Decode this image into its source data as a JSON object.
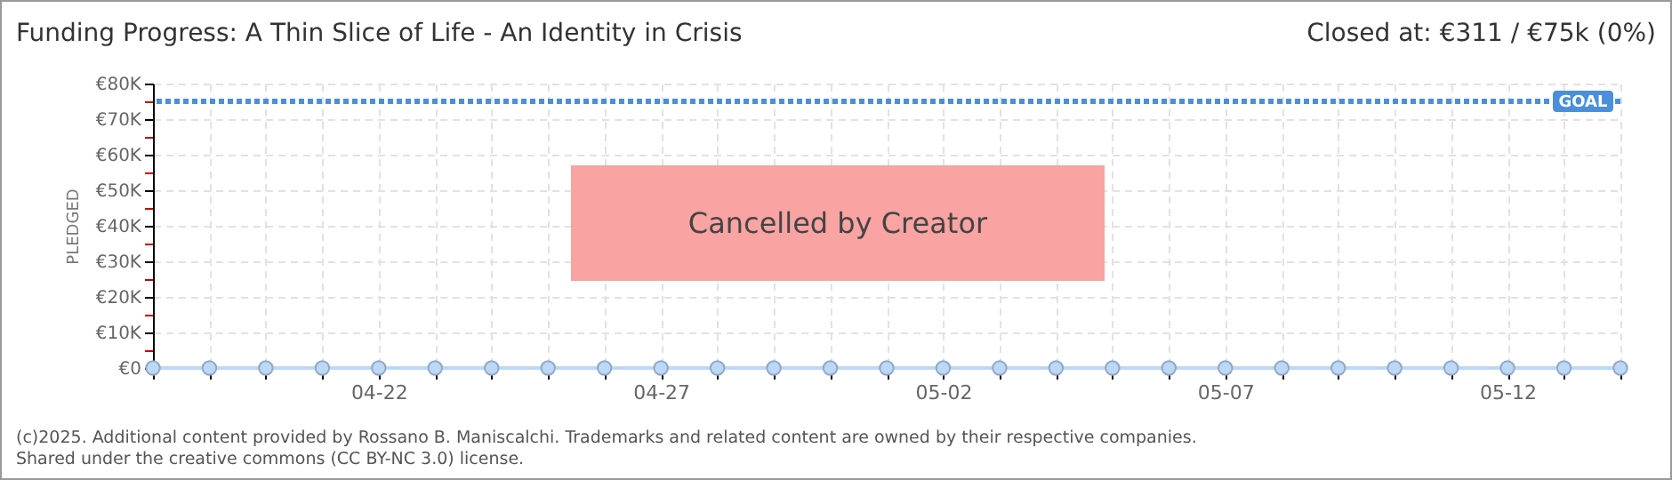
{
  "chart_data": {
    "type": "line",
    "title": "Funding Progress: A Thin Slice of Life - An Identity in Crisis",
    "subtitle": "Closed at:  €311 / €75k (0%)",
    "ylabel": "PLEDGED",
    "x": [
      "--04-18",
      "--04-19",
      "--04-20",
      "--04-21",
      "--04-22",
      "--04-23",
      "--04-24",
      "--04-25",
      "--04-26",
      "--04-27",
      "--04-28",
      "--04-29",
      "--04-30",
      "--05-01",
      "--05-02",
      "--05-03",
      "--05-04",
      "--05-05",
      "--05-06",
      "--05-07",
      "--05-08",
      "--05-09",
      "--05-10",
      "--05-11",
      "--05-12",
      "--05-13",
      "--05-14"
    ],
    "series": [
      {
        "color": "#bcd8f6",
        "values": [
          0,
          0,
          0,
          0,
          0,
          0,
          0,
          0,
          0,
          0,
          0,
          0,
          0,
          0,
          0,
          0,
          0,
          0,
          0,
          0,
          0,
          0,
          0,
          0,
          0,
          0,
          0
        ]
      }
    ],
    "xlim": [
      "--04-18",
      "--05-14"
    ],
    "xticks": [
      {
        "value": "--04-18",
        "label": null
      },
      {
        "value": "--04-19",
        "label": null
      },
      {
        "value": "--04-20",
        "label": null
      },
      {
        "value": "--04-21",
        "label": null
      },
      {
        "value": "--04-22",
        "label": "04-22"
      },
      {
        "value": "--04-23",
        "label": null
      },
      {
        "value": "--04-24",
        "label": null
      },
      {
        "value": "--04-25",
        "label": null
      },
      {
        "value": "--04-26",
        "label": null
      },
      {
        "value": "--04-27",
        "label": "04-27"
      },
      {
        "value": "--04-28",
        "label": null
      },
      {
        "value": "--04-29",
        "label": null
      },
      {
        "value": "--04-30",
        "label": null
      },
      {
        "value": "--05-01",
        "label": null
      },
      {
        "value": "--05-02",
        "label": "05-02"
      },
      {
        "value": "--05-03",
        "label": null
      },
      {
        "value": "--05-04",
        "label": null
      },
      {
        "value": "--05-05",
        "label": null
      },
      {
        "value": "--05-06",
        "label": null
      },
      {
        "value": "--05-07",
        "label": "05-07"
      },
      {
        "value": "--05-08",
        "label": null
      },
      {
        "value": "--05-09",
        "label": null
      },
      {
        "value": "--05-10",
        "label": null
      },
      {
        "value": "--05-11",
        "label": null
      },
      {
        "value": "--05-12",
        "label": "05-12"
      },
      {
        "value": "--05-13",
        "label": null
      },
      {
        "value": "--05-14",
        "label": null
      }
    ],
    "ylim": [
      0,
      80000
    ],
    "yticks": [
      {
        "value": 0,
        "label": "€0"
      },
      {
        "value": 5000,
        "label": null
      },
      {
        "value": 10000,
        "label": "€10K"
      },
      {
        "value": 15000,
        "label": null
      },
      {
        "value": 20000,
        "label": "€20K"
      },
      {
        "value": 25000,
        "label": null
      },
      {
        "value": 30000,
        "label": "€30K"
      },
      {
        "value": 35000,
        "label": null
      },
      {
        "value": 40000,
        "label": "€40K"
      },
      {
        "value": 45000,
        "label": null
      },
      {
        "value": 50000,
        "label": "€50K"
      },
      {
        "value": 55000,
        "label": null
      },
      {
        "value": 60000,
        "label": "€60K"
      },
      {
        "value": 65000,
        "label": null
      },
      {
        "value": 70000,
        "label": "€70K"
      },
      {
        "value": 75000,
        "label": null
      },
      {
        "value": 80000,
        "label": "€80K"
      }
    ],
    "ref_lines": [
      {
        "axis": "y",
        "value": 75000,
        "label": "GOAL",
        "color": "#4a8fdc",
        "line_style": "dotted"
      }
    ],
    "grid": true,
    "marker": "circle",
    "line_style": "solid",
    "annotations": [
      "Cancelled by Creator",
      "(c)2025. Additional content provided by Rossano B. Maniscalchi. Trademarks and related content are owned by their respective companies.",
      "Shared under the creative commons (CC BY-NC 3.0) license."
    ]
  }
}
